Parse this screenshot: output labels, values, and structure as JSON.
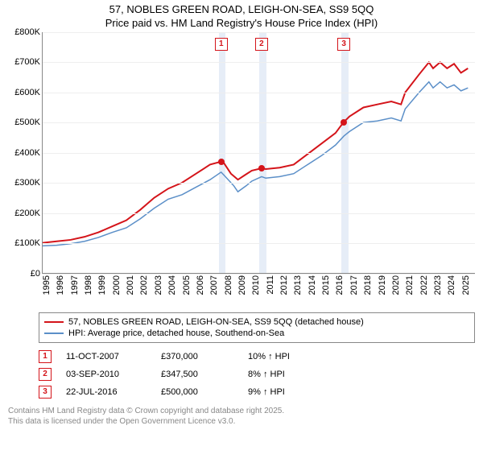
{
  "title_line1": "57, NOBLES GREEN ROAD, LEIGH-ON-SEA, SS9 5QQ",
  "title_line2": "Price paid vs. HM Land Registry's House Price Index (HPI)",
  "chart": {
    "type": "line",
    "background_color": "#ffffff",
    "grid_color": "#eeeeee",
    "axis_color": "#888888",
    "shade_color": "#e6edf7",
    "x_min": 1995,
    "x_max": 2026,
    "x_ticks": [
      1995,
      1996,
      1997,
      1998,
      1999,
      2000,
      2001,
      2002,
      2003,
      2004,
      2005,
      2006,
      2007,
      2008,
      2009,
      2010,
      2011,
      2012,
      2013,
      2014,
      2015,
      2016,
      2017,
      2018,
      2019,
      2020,
      2021,
      2022,
      2023,
      2024,
      2025
    ],
    "y_min": 0,
    "y_max": 800000,
    "y_ticks": [
      {
        "v": 0,
        "label": "£0"
      },
      {
        "v": 100000,
        "label": "£100K"
      },
      {
        "v": 200000,
        "label": "£200K"
      },
      {
        "v": 300000,
        "label": "£300K"
      },
      {
        "v": 400000,
        "label": "£400K"
      },
      {
        "v": 500000,
        "label": "£500K"
      },
      {
        "v": 600000,
        "label": "£600K"
      },
      {
        "v": 700000,
        "label": "£700K"
      },
      {
        "v": 800000,
        "label": "£800K"
      }
    ],
    "tick_fontsize": 11,
    "shaded_ranges": [
      {
        "from": 2007.6,
        "to": 2008.1
      },
      {
        "from": 2010.5,
        "to": 2011.0
      },
      {
        "from": 2016.4,
        "to": 2016.9
      }
    ],
    "series": [
      {
        "name": "red",
        "color": "#d4141a",
        "width": 2,
        "data": [
          [
            1995,
            100000
          ],
          [
            1996,
            105000
          ],
          [
            1997,
            110000
          ],
          [
            1998,
            120000
          ],
          [
            1999,
            135000
          ],
          [
            2000,
            155000
          ],
          [
            2001,
            175000
          ],
          [
            2002,
            210000
          ],
          [
            2003,
            250000
          ],
          [
            2004,
            280000
          ],
          [
            2005,
            300000
          ],
          [
            2006,
            330000
          ],
          [
            2007,
            360000
          ],
          [
            2007.78,
            370000
          ],
          [
            2008,
            365000
          ],
          [
            2008.5,
            330000
          ],
          [
            2009,
            310000
          ],
          [
            2009.5,
            325000
          ],
          [
            2010,
            340000
          ],
          [
            2010.67,
            347500
          ],
          [
            2011,
            345000
          ],
          [
            2012,
            350000
          ],
          [
            2013,
            360000
          ],
          [
            2014,
            395000
          ],
          [
            2015,
            430000
          ],
          [
            2016,
            465000
          ],
          [
            2016.56,
            500000
          ],
          [
            2017,
            520000
          ],
          [
            2018,
            550000
          ],
          [
            2019,
            560000
          ],
          [
            2020,
            570000
          ],
          [
            2020.7,
            560000
          ],
          [
            2021,
            600000
          ],
          [
            2022,
            660000
          ],
          [
            2022.7,
            700000
          ],
          [
            2023,
            680000
          ],
          [
            2023.5,
            700000
          ],
          [
            2024,
            680000
          ],
          [
            2024.5,
            695000
          ],
          [
            2025,
            665000
          ],
          [
            2025.5,
            680000
          ]
        ]
      },
      {
        "name": "blue",
        "color": "#5b8fc8",
        "width": 1.5,
        "data": [
          [
            1995,
            90000
          ],
          [
            1996,
            92000
          ],
          [
            1997,
            97000
          ],
          [
            1998,
            105000
          ],
          [
            1999,
            118000
          ],
          [
            2000,
            135000
          ],
          [
            2001,
            150000
          ],
          [
            2002,
            180000
          ],
          [
            2003,
            215000
          ],
          [
            2004,
            245000
          ],
          [
            2005,
            260000
          ],
          [
            2006,
            285000
          ],
          [
            2007,
            310000
          ],
          [
            2007.8,
            335000
          ],
          [
            2008,
            325000
          ],
          [
            2008.7,
            290000
          ],
          [
            2009,
            270000
          ],
          [
            2009.6,
            290000
          ],
          [
            2010,
            305000
          ],
          [
            2010.7,
            320000
          ],
          [
            2011,
            315000
          ],
          [
            2012,
            320000
          ],
          [
            2013,
            330000
          ],
          [
            2014,
            360000
          ],
          [
            2015,
            390000
          ],
          [
            2016,
            425000
          ],
          [
            2016.6,
            455000
          ],
          [
            2017,
            470000
          ],
          [
            2018,
            500000
          ],
          [
            2019,
            505000
          ],
          [
            2020,
            515000
          ],
          [
            2020.7,
            505000
          ],
          [
            2021,
            545000
          ],
          [
            2022,
            600000
          ],
          [
            2022.7,
            635000
          ],
          [
            2023,
            615000
          ],
          [
            2023.5,
            635000
          ],
          [
            2024,
            615000
          ],
          [
            2024.5,
            625000
          ],
          [
            2025,
            605000
          ],
          [
            2025.5,
            615000
          ]
        ]
      }
    ],
    "sale_points": [
      {
        "n": "1",
        "x": 2007.78,
        "y": 370000,
        "color": "#d4141a"
      },
      {
        "n": "2",
        "x": 2010.67,
        "y": 347500,
        "color": "#d4141a"
      },
      {
        "n": "3",
        "x": 2016.56,
        "y": 500000,
        "color": "#d4141a"
      }
    ],
    "marker_box_top_y": 780000
  },
  "legend": {
    "items": [
      {
        "color": "#d4141a",
        "label": "57, NOBLES GREEN ROAD, LEIGH-ON-SEA, SS9 5QQ (detached house)"
      },
      {
        "color": "#5b8fc8",
        "label": "HPI: Average price, detached house, Southend-on-Sea"
      }
    ]
  },
  "sales": [
    {
      "n": "1",
      "date": "11-OCT-2007",
      "price": "£370,000",
      "pct": "10% ↑ HPI",
      "color": "#d4141a"
    },
    {
      "n": "2",
      "date": "03-SEP-2010",
      "price": "£347,500",
      "pct": "8% ↑ HPI",
      "color": "#d4141a"
    },
    {
      "n": "3",
      "date": "22-JUL-2016",
      "price": "£500,000",
      "pct": "9% ↑ HPI",
      "color": "#d4141a"
    }
  ],
  "footer_line1": "Contains HM Land Registry data © Crown copyright and database right 2025.",
  "footer_line2": "This data is licensed under the Open Government Licence v3.0."
}
